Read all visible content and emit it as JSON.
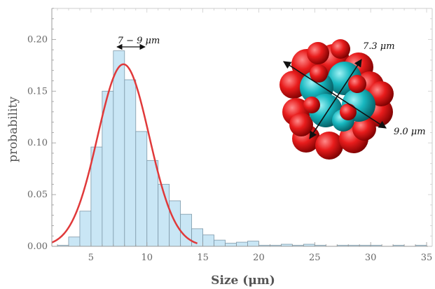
{
  "chart_data": {
    "type": "bar",
    "title": "",
    "xlabel": "Size (μm)",
    "ylabel": "probability",
    "xlim": [
      1.5,
      35.5
    ],
    "ylim": [
      0,
      0.23
    ],
    "x_ticks": [
      5,
      10,
      15,
      20,
      25,
      30,
      35
    ],
    "y_ticks": [
      0.0,
      0.05,
      0.1,
      0.15,
      0.2
    ],
    "y_tick_labels": [
      "0.00",
      "0.05",
      "0.10",
      "0.15",
      "0.20"
    ],
    "bin_width": 1,
    "bins": [
      {
        "x0": 2,
        "value": 0.001
      },
      {
        "x0": 3,
        "value": 0.009
      },
      {
        "x0": 4,
        "value": 0.034
      },
      {
        "x0": 5,
        "value": 0.096
      },
      {
        "x0": 6,
        "value": 0.15
      },
      {
        "x0": 7,
        "value": 0.189
      },
      {
        "x0": 8,
        "value": 0.161
      },
      {
        "x0": 9,
        "value": 0.111
      },
      {
        "x0": 10,
        "value": 0.083
      },
      {
        "x0": 11,
        "value": 0.06
      },
      {
        "x0": 12,
        "value": 0.044
      },
      {
        "x0": 13,
        "value": 0.031
      },
      {
        "x0": 14,
        "value": 0.017
      },
      {
        "x0": 15,
        "value": 0.011
      },
      {
        "x0": 16,
        "value": 0.006
      },
      {
        "x0": 17,
        "value": 0.003
      },
      {
        "x0": 18,
        "value": 0.004
      },
      {
        "x0": 19,
        "value": 0.005
      },
      {
        "x0": 20,
        "value": 0.001
      },
      {
        "x0": 21,
        "value": 0.001
      },
      {
        "x0": 22,
        "value": 0.002
      },
      {
        "x0": 23,
        "value": 0.001
      },
      {
        "x0": 24,
        "value": 0.002
      },
      {
        "x0": 25,
        "value": 0.001
      },
      {
        "x0": 26,
        "value": 0.0
      },
      {
        "x0": 27,
        "value": 0.001
      },
      {
        "x0": 28,
        "value": 0.001
      },
      {
        "x0": 29,
        "value": 0.001
      },
      {
        "x0": 30,
        "value": 0.001
      },
      {
        "x0": 31,
        "value": 0.0
      },
      {
        "x0": 32,
        "value": 0.001
      },
      {
        "x0": 33,
        "value": 0.0
      },
      {
        "x0": 34,
        "value": 0.001
      }
    ],
    "fit_curve": {
      "type": "gaussian",
      "mean": 7.9,
      "sigma": 2.3,
      "peak": 0.176,
      "x_range": [
        1.5,
        14.5
      ]
    },
    "annotations": {
      "peak_range": "7 − 9 μm",
      "dim_small": "7.3 μm",
      "dim_large": "9.0 μm"
    },
    "grid": false,
    "colors": {
      "bar_fill": "#c9e6f5",
      "bar_stroke": "#7d98a8",
      "fit_line": "#e0393a",
      "atom_red": "#e81c1c",
      "atom_teal": "#18b8c0"
    }
  }
}
